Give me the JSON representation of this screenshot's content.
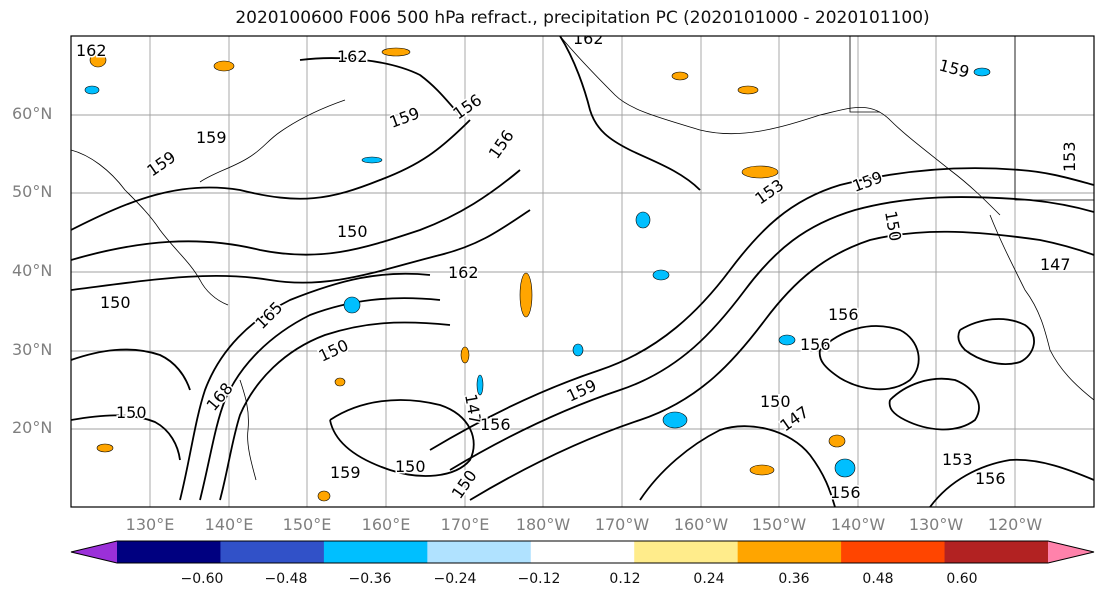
{
  "title": "2020100600 F006 500 hPa refract., precipitation PC (2020101000 - 2020101100)",
  "map": {
    "region": "North Pacific",
    "lat_labels": [
      "60°N",
      "50°N",
      "40°N",
      "30°N",
      "20°N"
    ],
    "lon_labels": [
      "130°E",
      "140°E",
      "150°E",
      "160°E",
      "170°E",
      "180°W",
      "170°W",
      "160°W",
      "150°W",
      "140°W",
      "130°W",
      "120°W"
    ],
    "contour_color": "#000000",
    "contour_labels": [
      "162",
      "162",
      "162",
      "159",
      "159",
      "159",
      "156",
      "156",
      "159",
      "150",
      "162",
      "150",
      "150",
      "165",
      "150",
      "168",
      "147",
      "156",
      "159",
      "150",
      "147",
      "156",
      "156",
      "153",
      "159",
      "150",
      "153",
      "147",
      "150",
      "159",
      "150",
      "153",
      "156",
      "156"
    ]
  },
  "colorbar": {
    "colors": [
      "#9b30d9",
      "#000080",
      "#3151c8",
      "#00bfff",
      "#b0e2ff",
      "#ffffff",
      "#ffec8b",
      "#ffa500",
      "#ff4500",
      "#b22222",
      "#ff82ab"
    ],
    "tick_labels": [
      "−0.60",
      "−0.48",
      "−0.36",
      "−0.24",
      "−0.12",
      "0.12",
      "0.24",
      "0.36",
      "0.48",
      "0.60"
    ]
  }
}
